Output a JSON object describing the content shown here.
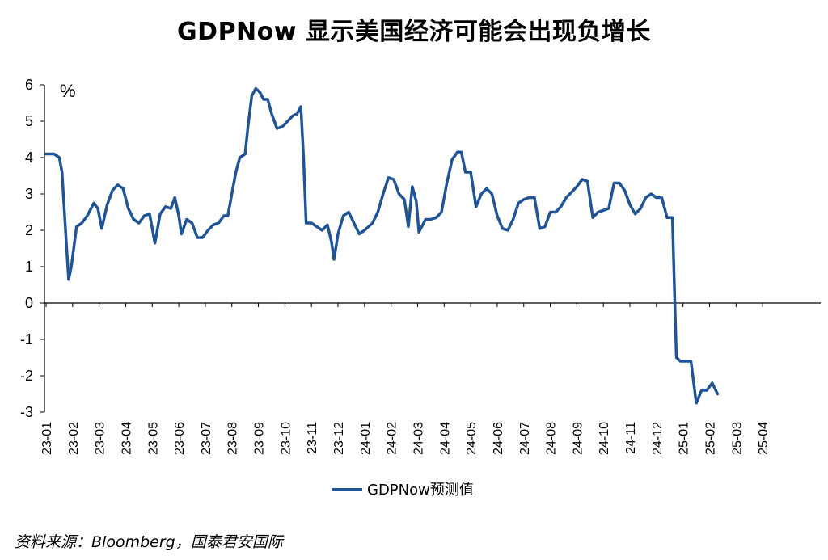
{
  "chart_data": {
    "type": "line",
    "title": "GDPNow 显示美国经济可能会出现负增长",
    "unit": "%",
    "ylim": [
      -3,
      6
    ],
    "yticks": [
      "6",
      "5",
      "4",
      "3",
      "2",
      "1",
      "0",
      "-1",
      "-2",
      "-3"
    ],
    "categories": [
      "23-01",
      "23-02",
      "23-03",
      "23-04",
      "23-05",
      "23-06",
      "23-07",
      "23-08",
      "23-09",
      "23-10",
      "23-11",
      "23-12",
      "24-01",
      "24-02",
      "24-03",
      "24-04",
      "24-05",
      "24-06",
      "24-07",
      "24-08",
      "24-09",
      "24-10",
      "24-11",
      "24-12",
      "25-01",
      "25-02",
      "25-03",
      "25-04"
    ],
    "series": [
      {
        "name": "GDPNow预测值",
        "color": "#1f5597",
        "values": [
          [
            0.0,
            4.1
          ],
          [
            0.3,
            4.1
          ],
          [
            0.5,
            4.0
          ],
          [
            0.6,
            3.6
          ],
          [
            0.75,
            1.8
          ],
          [
            0.85,
            0.65
          ],
          [
            0.95,
            1.0
          ],
          [
            1.15,
            2.1
          ],
          [
            1.35,
            2.2
          ],
          [
            1.55,
            2.4
          ],
          [
            1.8,
            2.75
          ],
          [
            1.95,
            2.6
          ],
          [
            2.1,
            2.05
          ],
          [
            2.3,
            2.7
          ],
          [
            2.5,
            3.1
          ],
          [
            2.7,
            3.25
          ],
          [
            2.9,
            3.15
          ],
          [
            3.1,
            2.6
          ],
          [
            3.3,
            2.3
          ],
          [
            3.5,
            2.2
          ],
          [
            3.7,
            2.4
          ],
          [
            3.9,
            2.45
          ],
          [
            4.1,
            1.65
          ],
          [
            4.3,
            2.45
          ],
          [
            4.5,
            2.65
          ],
          [
            4.7,
            2.6
          ],
          [
            4.85,
            2.9
          ],
          [
            5.0,
            2.4
          ],
          [
            5.1,
            1.9
          ],
          [
            5.3,
            2.3
          ],
          [
            5.5,
            2.2
          ],
          [
            5.7,
            1.8
          ],
          [
            5.9,
            1.8
          ],
          [
            6.1,
            2.0
          ],
          [
            6.3,
            2.15
          ],
          [
            6.5,
            2.2
          ],
          [
            6.7,
            2.4
          ],
          [
            6.85,
            2.4
          ],
          [
            7.0,
            3.0
          ],
          [
            7.15,
            3.6
          ],
          [
            7.3,
            4.0
          ],
          [
            7.5,
            4.1
          ],
          [
            7.6,
            4.8
          ],
          [
            7.75,
            5.7
          ],
          [
            7.9,
            5.9
          ],
          [
            8.05,
            5.8
          ],
          [
            8.2,
            5.6
          ],
          [
            8.35,
            5.6
          ],
          [
            8.5,
            5.2
          ],
          [
            8.7,
            4.8
          ],
          [
            8.9,
            4.85
          ],
          [
            9.1,
            5.0
          ],
          [
            9.3,
            5.15
          ],
          [
            9.45,
            5.2
          ],
          [
            9.6,
            5.4
          ],
          [
            9.7,
            4.0
          ],
          [
            9.8,
            2.2
          ],
          [
            10.0,
            2.2
          ],
          [
            10.2,
            2.1
          ],
          [
            10.4,
            2.0
          ],
          [
            10.6,
            2.15
          ],
          [
            10.75,
            1.7
          ],
          [
            10.85,
            1.2
          ],
          [
            11.0,
            1.9
          ],
          [
            11.2,
            2.4
          ],
          [
            11.4,
            2.5
          ],
          [
            11.6,
            2.2
          ],
          [
            11.8,
            1.9
          ],
          [
            12.0,
            2.0
          ],
          [
            12.3,
            2.2
          ],
          [
            12.5,
            2.5
          ],
          [
            12.7,
            3.0
          ],
          [
            12.9,
            3.45
          ],
          [
            13.1,
            3.4
          ],
          [
            13.3,
            3.0
          ],
          [
            13.5,
            2.85
          ],
          [
            13.65,
            2.1
          ],
          [
            13.8,
            3.2
          ],
          [
            13.95,
            2.8
          ],
          [
            14.05,
            1.95
          ],
          [
            14.3,
            2.3
          ],
          [
            14.5,
            2.3
          ],
          [
            14.7,
            2.35
          ],
          [
            14.9,
            2.5
          ],
          [
            15.1,
            3.3
          ],
          [
            15.3,
            3.95
          ],
          [
            15.5,
            4.15
          ],
          [
            15.65,
            4.15
          ],
          [
            15.8,
            3.6
          ],
          [
            16.0,
            3.6
          ],
          [
            16.2,
            2.65
          ],
          [
            16.4,
            3.0
          ],
          [
            16.6,
            3.15
          ],
          [
            16.8,
            3.0
          ],
          [
            17.0,
            2.4
          ],
          [
            17.2,
            2.05
          ],
          [
            17.4,
            2.0
          ],
          [
            17.6,
            2.3
          ],
          [
            17.8,
            2.75
          ],
          [
            18.0,
            2.85
          ],
          [
            18.2,
            2.9
          ],
          [
            18.4,
            2.9
          ],
          [
            18.6,
            2.05
          ],
          [
            18.8,
            2.1
          ],
          [
            19.0,
            2.5
          ],
          [
            19.2,
            2.5
          ],
          [
            19.4,
            2.65
          ],
          [
            19.6,
            2.9
          ],
          [
            19.8,
            3.05
          ],
          [
            20.0,
            3.2
          ],
          [
            20.2,
            3.4
          ],
          [
            20.4,
            3.35
          ],
          [
            20.6,
            2.35
          ],
          [
            20.8,
            2.5
          ],
          [
            21.0,
            2.55
          ],
          [
            21.2,
            2.6
          ],
          [
            21.4,
            3.3
          ],
          [
            21.6,
            3.3
          ],
          [
            21.8,
            3.1
          ],
          [
            22.0,
            2.7
          ],
          [
            22.2,
            2.45
          ],
          [
            22.4,
            2.6
          ],
          [
            22.6,
            2.9
          ],
          [
            22.8,
            3.0
          ],
          [
            23.0,
            2.9
          ],
          [
            23.2,
            2.9
          ],
          [
            23.4,
            2.35
          ],
          [
            23.6,
            2.35
          ],
          [
            23.75,
            -1.5
          ],
          [
            23.9,
            -1.6
          ],
          [
            24.1,
            -1.6
          ],
          [
            24.3,
            -1.6
          ],
          [
            24.5,
            -2.75
          ],
          [
            24.7,
            -2.4
          ],
          [
            24.9,
            -2.4
          ],
          [
            25.1,
            -2.2
          ],
          [
            25.3,
            -2.5
          ]
        ]
      }
    ],
    "legend": "bottom-center",
    "grid": false
  },
  "source_note": "资料来源：Bloomberg，国泰君安国际"
}
